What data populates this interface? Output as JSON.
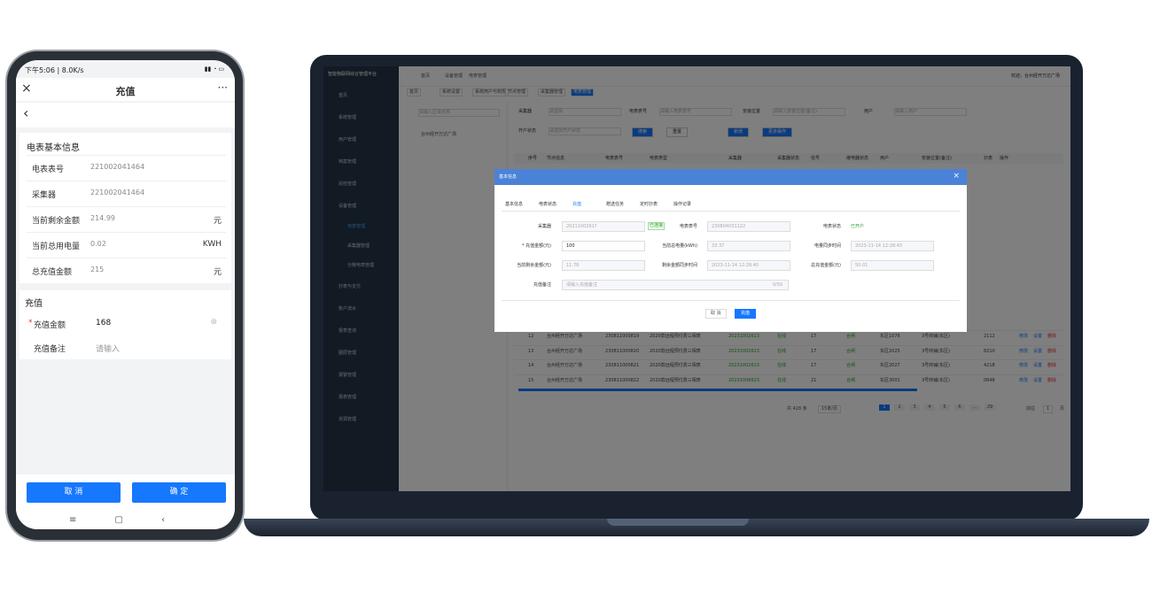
{
  "phone": {
    "status": "下午5:06 | 8.0K/s",
    "title": "充值",
    "info_title": "电表基本信息",
    "info": [
      {
        "label": "电表表号",
        "value": "221002041464"
      },
      {
        "label": "采集器",
        "value": "221002041464"
      },
      {
        "label": "当前剩余金额",
        "value": "214.99",
        "unit": "元"
      },
      {
        "label": "当前总用电量",
        "value": "0.02",
        "unit": "KWH"
      },
      {
        "label": "总充值金额",
        "value": "215",
        "unit": "元"
      }
    ],
    "form_title": "充值",
    "form": [
      {
        "label": "充值金额",
        "value": "168"
      },
      {
        "label": "充值备注",
        "placeholder": "请输入"
      }
    ],
    "cancel": "取 消",
    "confirm": "确 定"
  },
  "laptop": {
    "app_title": "智能物联网综合管理平台",
    "breadcrumb": [
      "首页",
      "设备管理",
      "电表管理"
    ],
    "welcome": "欢迎，台州经开万达广场",
    "menu": [
      {
        "label": "首页"
      },
      {
        "label": "系统管理"
      },
      {
        "label": "用户管理"
      },
      {
        "label": "档案管理"
      },
      {
        "label": "巡检管理"
      },
      {
        "label": "设备管理",
        "children": [
          "电表管理",
          "采集器管理",
          "分散电表管理"
        ]
      },
      {
        "label": "抄表与支付"
      },
      {
        "label": "账户流水"
      },
      {
        "label": "报表查询"
      },
      {
        "label": "圈层管理"
      },
      {
        "label": "报警管理"
      },
      {
        "label": "报表管理"
      },
      {
        "label": "资源管理"
      }
    ],
    "tabs": [
      "首页",
      "系统设置",
      "系统用户与权限",
      "节点管理",
      "采集器管理",
      "电表管理"
    ],
    "tree_search": "请输入区域名称",
    "tree_node": "台州经开万达广场",
    "filters": [
      {
        "label": "采集器",
        "placeholder": "请选择"
      },
      {
        "label": "电表表号",
        "placeholder": "请输入电表表号"
      },
      {
        "label": "安装位置",
        "placeholder": "请输入安装位置(备注)"
      },
      {
        "label": "用户",
        "placeholder": "请输入用户"
      },
      {
        "label": "开户状态",
        "placeholder": "请选择开户状态"
      }
    ],
    "buttons": [
      "搜索",
      "重置",
      "新增",
      "更多操作"
    ],
    "columns": [
      "序号",
      "节点信息",
      "电表表号",
      "电表类型",
      "采集器",
      "采集器状态",
      "信号",
      "继电器状态",
      "用户",
      "安装位置(备注)",
      "抄表",
      "操作"
    ],
    "rows": [
      [
        "12",
        "台州经开万达广场",
        "230811000819",
        "2020款远程预付费三相表",
        "20231002613",
        "在线",
        "17",
        "合闸",
        "东区1076",
        "3号商铺(东区)",
        "2112"
      ],
      [
        "13",
        "台州经开万达广场",
        "230811000820",
        "2020款远程预付费三相表",
        "20231002613",
        "在线",
        "17",
        "合闸",
        "东区2025",
        "3号商铺(东区)",
        "8210"
      ],
      [
        "14",
        "台州经开万达广场",
        "230811000821",
        "2020款远程预付费三相表",
        "20231002613",
        "在线",
        "17",
        "合闸",
        "东区2027",
        "3号商铺(东区)",
        "4218"
      ],
      [
        "15",
        "台州经开万达广场",
        "230811000822",
        "2020款远程预付费三相表",
        "20231006623",
        "在线",
        "21",
        "合闸",
        "东区3001",
        "3号商铺(东区)",
        "0648"
      ]
    ],
    "ops": [
      "修改",
      "设置",
      "删除"
    ],
    "pagination": {
      "total": "共 428 条",
      "size": "15条/页",
      "pages": [
        "1",
        "2",
        "3",
        "4",
        "5",
        "6",
        "...",
        "29"
      ],
      "goto": "前往",
      "page": "1",
      "unit": "页"
    },
    "modal": {
      "title": "基本信息",
      "tabs": [
        "基本信息",
        "电表状态",
        "充值",
        "赠送任务",
        "定时抄表",
        "操作记录"
      ],
      "fields": [
        {
          "label": "采集器",
          "value": "2021100261?",
          "tag": "已连接"
        },
        {
          "label": "电表表号",
          "value": "230804031122"
        },
        {
          "label": "电表状态",
          "value": "已开户"
        },
        {
          "label": "* 充值金额(元)",
          "value": "100"
        },
        {
          "label": "当前总电量(kWh)",
          "value": "33.37"
        },
        {
          "label": "电量同步时间",
          "value": "2023-11-14 12:28:43"
        },
        {
          "label": "当前剩余金额(元)",
          "value": "11.78"
        },
        {
          "label": "剩余金额同步时间",
          "value": "2023-11-14 12:28:40"
        },
        {
          "label": "总充值金额(元)",
          "value": "50.01"
        },
        {
          "label": "充值备注",
          "value": "请输入充值备注",
          "counter": "0/50"
        }
      ],
      "cancel": "取 消",
      "submit": "充值"
    }
  }
}
